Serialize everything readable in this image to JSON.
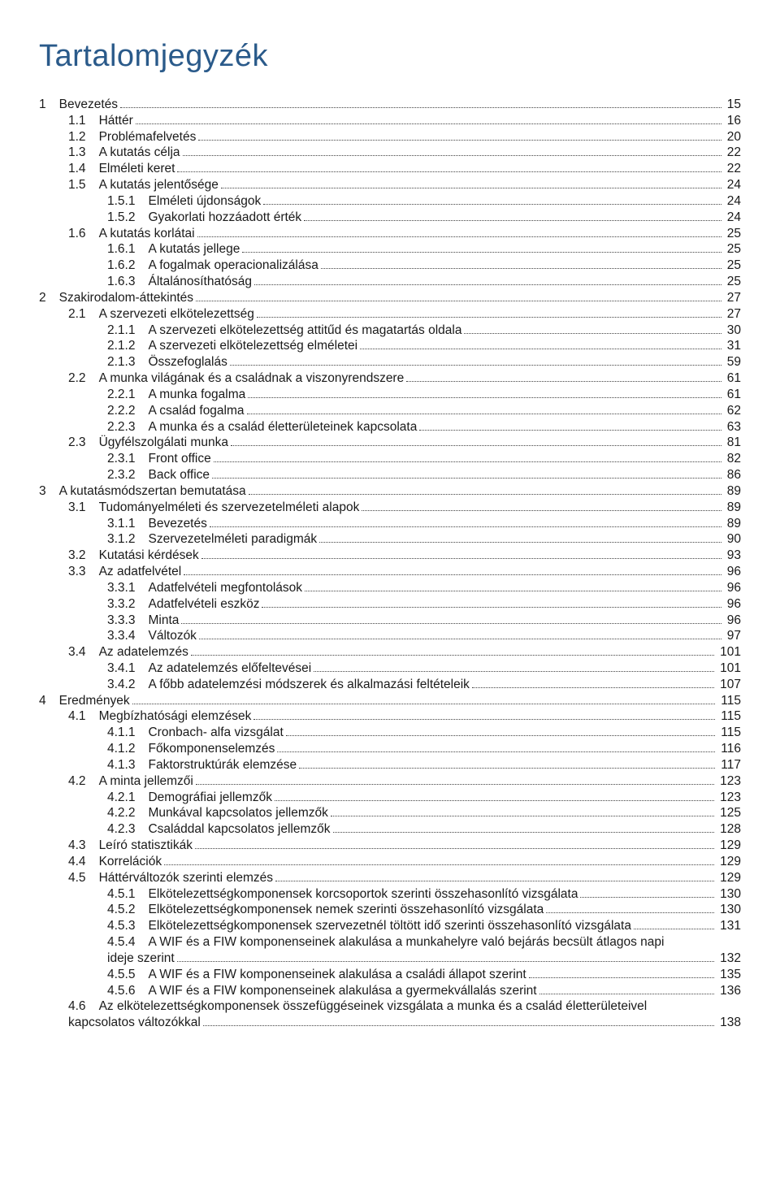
{
  "title": "Tartalomjegyzék",
  "colors": {
    "title": "#2a5a8a",
    "text": "#1a1a1a",
    "background": "#ffffff",
    "leader": "#414141"
  },
  "typography": {
    "title_fontsize_pt": 28,
    "body_fontsize_pt": 11,
    "font_family": "Myriad Pro / Segoe UI"
  },
  "entries": [
    {
      "num": "1",
      "label": "Bevezetés",
      "page": "15",
      "level": 0
    },
    {
      "num": "1.1",
      "label": "Háttér",
      "page": "16",
      "level": 1
    },
    {
      "num": "1.2",
      "label": "Problémafelvetés",
      "page": "20",
      "level": 1
    },
    {
      "num": "1.3",
      "label": "A kutatás célja",
      "page": "22",
      "level": 1
    },
    {
      "num": "1.4",
      "label": "Elméleti keret",
      "page": "22",
      "level": 1
    },
    {
      "num": "1.5",
      "label": "A kutatás jelentősége",
      "page": "24",
      "level": 1
    },
    {
      "num": "1.5.1",
      "label": "Elméleti újdonságok",
      "page": "24",
      "level": 2
    },
    {
      "num": "1.5.2",
      "label": "Gyakorlati hozzáadott érték",
      "page": "24",
      "level": 2
    },
    {
      "num": "1.6",
      "label": "A kutatás korlátai",
      "page": "25",
      "level": 1
    },
    {
      "num": "1.6.1",
      "label": "A kutatás jellege",
      "page": "25",
      "level": 2
    },
    {
      "num": "1.6.2",
      "label": "A fogalmak operacionalizálása",
      "page": "25",
      "level": 2
    },
    {
      "num": "1.6.3",
      "label": "Általánosíthatóság",
      "page": "25",
      "level": 2
    },
    {
      "num": "2",
      "label": "Szakirodalom-áttekintés",
      "page": "27",
      "level": 0
    },
    {
      "num": "2.1",
      "label": "A szervezeti elkötelezettség",
      "page": "27",
      "level": 1
    },
    {
      "num": "2.1.1",
      "label": "A szervezeti elkötelezettség attitűd és magatartás oldala",
      "page": "30",
      "level": 2
    },
    {
      "num": "2.1.2",
      "label": "A szervezeti elkötelezettség elméletei",
      "page": "31",
      "level": 2
    },
    {
      "num": "2.1.3",
      "label": "Összefoglalás",
      "page": "59",
      "level": 2
    },
    {
      "num": "2.2",
      "label": "A munka világának és a családnak a viszonyrendszere",
      "page": "61",
      "level": 1
    },
    {
      "num": "2.2.1",
      "label": "A munka fogalma",
      "page": "61",
      "level": 2
    },
    {
      "num": "2.2.2",
      "label": "A család fogalma",
      "page": "62",
      "level": 2
    },
    {
      "num": "2.2.3",
      "label": "A munka és a család életterületeinek kapcsolata",
      "page": "63",
      "level": 2
    },
    {
      "num": "2.3",
      "label": "Ügyfélszolgálati munka",
      "page": "81",
      "level": 1
    },
    {
      "num": "2.3.1",
      "label": "Front office",
      "page": "82",
      "level": 2
    },
    {
      "num": "2.3.2",
      "label": "Back office",
      "page": "86",
      "level": 2
    },
    {
      "num": "3",
      "label": "A kutatásmódszertan bemutatása",
      "page": "89",
      "level": 0
    },
    {
      "num": "3.1",
      "label": "Tudományelméleti és szervezetelméleti alapok",
      "page": "89",
      "level": 1
    },
    {
      "num": "3.1.1",
      "label": "Bevezetés",
      "page": "89",
      "level": 2
    },
    {
      "num": "3.1.2",
      "label": "Szervezetelméleti paradigmák",
      "page": "90",
      "level": 2
    },
    {
      "num": "3.2",
      "label": "Kutatási kérdések",
      "page": "93",
      "level": 1
    },
    {
      "num": "3.3",
      "label": "Az adatfelvétel",
      "page": "96",
      "level": 1
    },
    {
      "num": "3.3.1",
      "label": "Adatfelvételi megfontolások",
      "page": "96",
      "level": 2
    },
    {
      "num": "3.3.2",
      "label": "Adatfelvételi eszköz",
      "page": "96",
      "level": 2
    },
    {
      "num": "3.3.3",
      "label": "Minta",
      "page": "96",
      "level": 2
    },
    {
      "num": "3.3.4",
      "label": "Változók",
      "page": "97",
      "level": 2
    },
    {
      "num": "3.4",
      "label": "Az adatelemzés",
      "page": "101",
      "level": 1
    },
    {
      "num": "3.4.1",
      "label": "Az adatelemzés előfeltevései",
      "page": "101",
      "level": 2
    },
    {
      "num": "3.4.2",
      "label": "A főbb adatelemzési módszerek és alkalmazási feltételeik",
      "page": "107",
      "level": 2
    },
    {
      "num": "4",
      "label": "Eredmények",
      "page": "115",
      "level": 0
    },
    {
      "num": "4.1",
      "label": "Megbízhatósági elemzések",
      "page": "115",
      "level": 1
    },
    {
      "num": "4.1.1",
      "label": "Cronbach- alfa vizsgálat",
      "page": "115",
      "level": 2
    },
    {
      "num": "4.1.2",
      "label": "Főkomponenselemzés",
      "page": "116",
      "level": 2
    },
    {
      "num": "4.1.3",
      "label": "Faktorstruktúrák elemzése",
      "page": "117",
      "level": 2
    },
    {
      "num": "4.2",
      "label": "A minta jellemzői",
      "page": "123",
      "level": 1
    },
    {
      "num": "4.2.1",
      "label": "Demográfiai jellemzők",
      "page": "123",
      "level": 2
    },
    {
      "num": "4.2.2",
      "label": "Munkával kapcsolatos jellemzők",
      "page": "125",
      "level": 2
    },
    {
      "num": "4.2.3",
      "label": "Családdal kapcsolatos jellemzők",
      "page": "128",
      "level": 2
    },
    {
      "num": "4.3",
      "label": "Leíró statisztikák",
      "page": "129",
      "level": 1
    },
    {
      "num": "4.4",
      "label": "Korrelációk",
      "page": "129",
      "level": 1
    },
    {
      "num": "4.5",
      "label": "Háttérváltozók szerinti elemzés",
      "page": "129",
      "level": 1
    },
    {
      "num": "4.5.1",
      "label": "Elkötelezettségkomponensek korcsoportok szerinti összehasonlító vizsgálata",
      "page": "130",
      "level": 2
    },
    {
      "num": "4.5.2",
      "label": "Elkötelezettségkomponensek nemek szerinti összehasonlító vizsgálata",
      "page": "130",
      "level": 2
    },
    {
      "num": "4.5.3",
      "label": "Elkötelezettségkomponensek szervezetnél töltött idő szerinti összehasonlító vizsgálata",
      "page": "131",
      "level": 2
    },
    {
      "num": "4.5.4",
      "label": "A WIF és a FIW komponenseinek alakulása a munkahelyre való bejárás becsült átlagos napi",
      "page": "",
      "level": 2,
      "nowrap_page": true
    },
    {
      "num": "",
      "label": "ideje szerint",
      "page": "132",
      "level": 2,
      "continuation": true
    },
    {
      "num": "4.5.5",
      "label": "A WIF és a FIW komponenseinek alakulása a családi állapot szerint",
      "page": "135",
      "level": 2
    },
    {
      "num": "4.5.6",
      "label": "A WIF és a FIW komponenseinek alakulása a gyermekvállalás szerint",
      "page": "136",
      "level": 2
    },
    {
      "num": "4.6",
      "label": "Az elkötelezettségkomponensek összefüggéseinek vizsgálata a munka és a család életterületeivel",
      "page": "",
      "level": 1,
      "nowrap_page": true
    },
    {
      "num": "",
      "label": "kapcsolatos változókkal",
      "page": "138",
      "level": 1,
      "continuation": true
    }
  ]
}
